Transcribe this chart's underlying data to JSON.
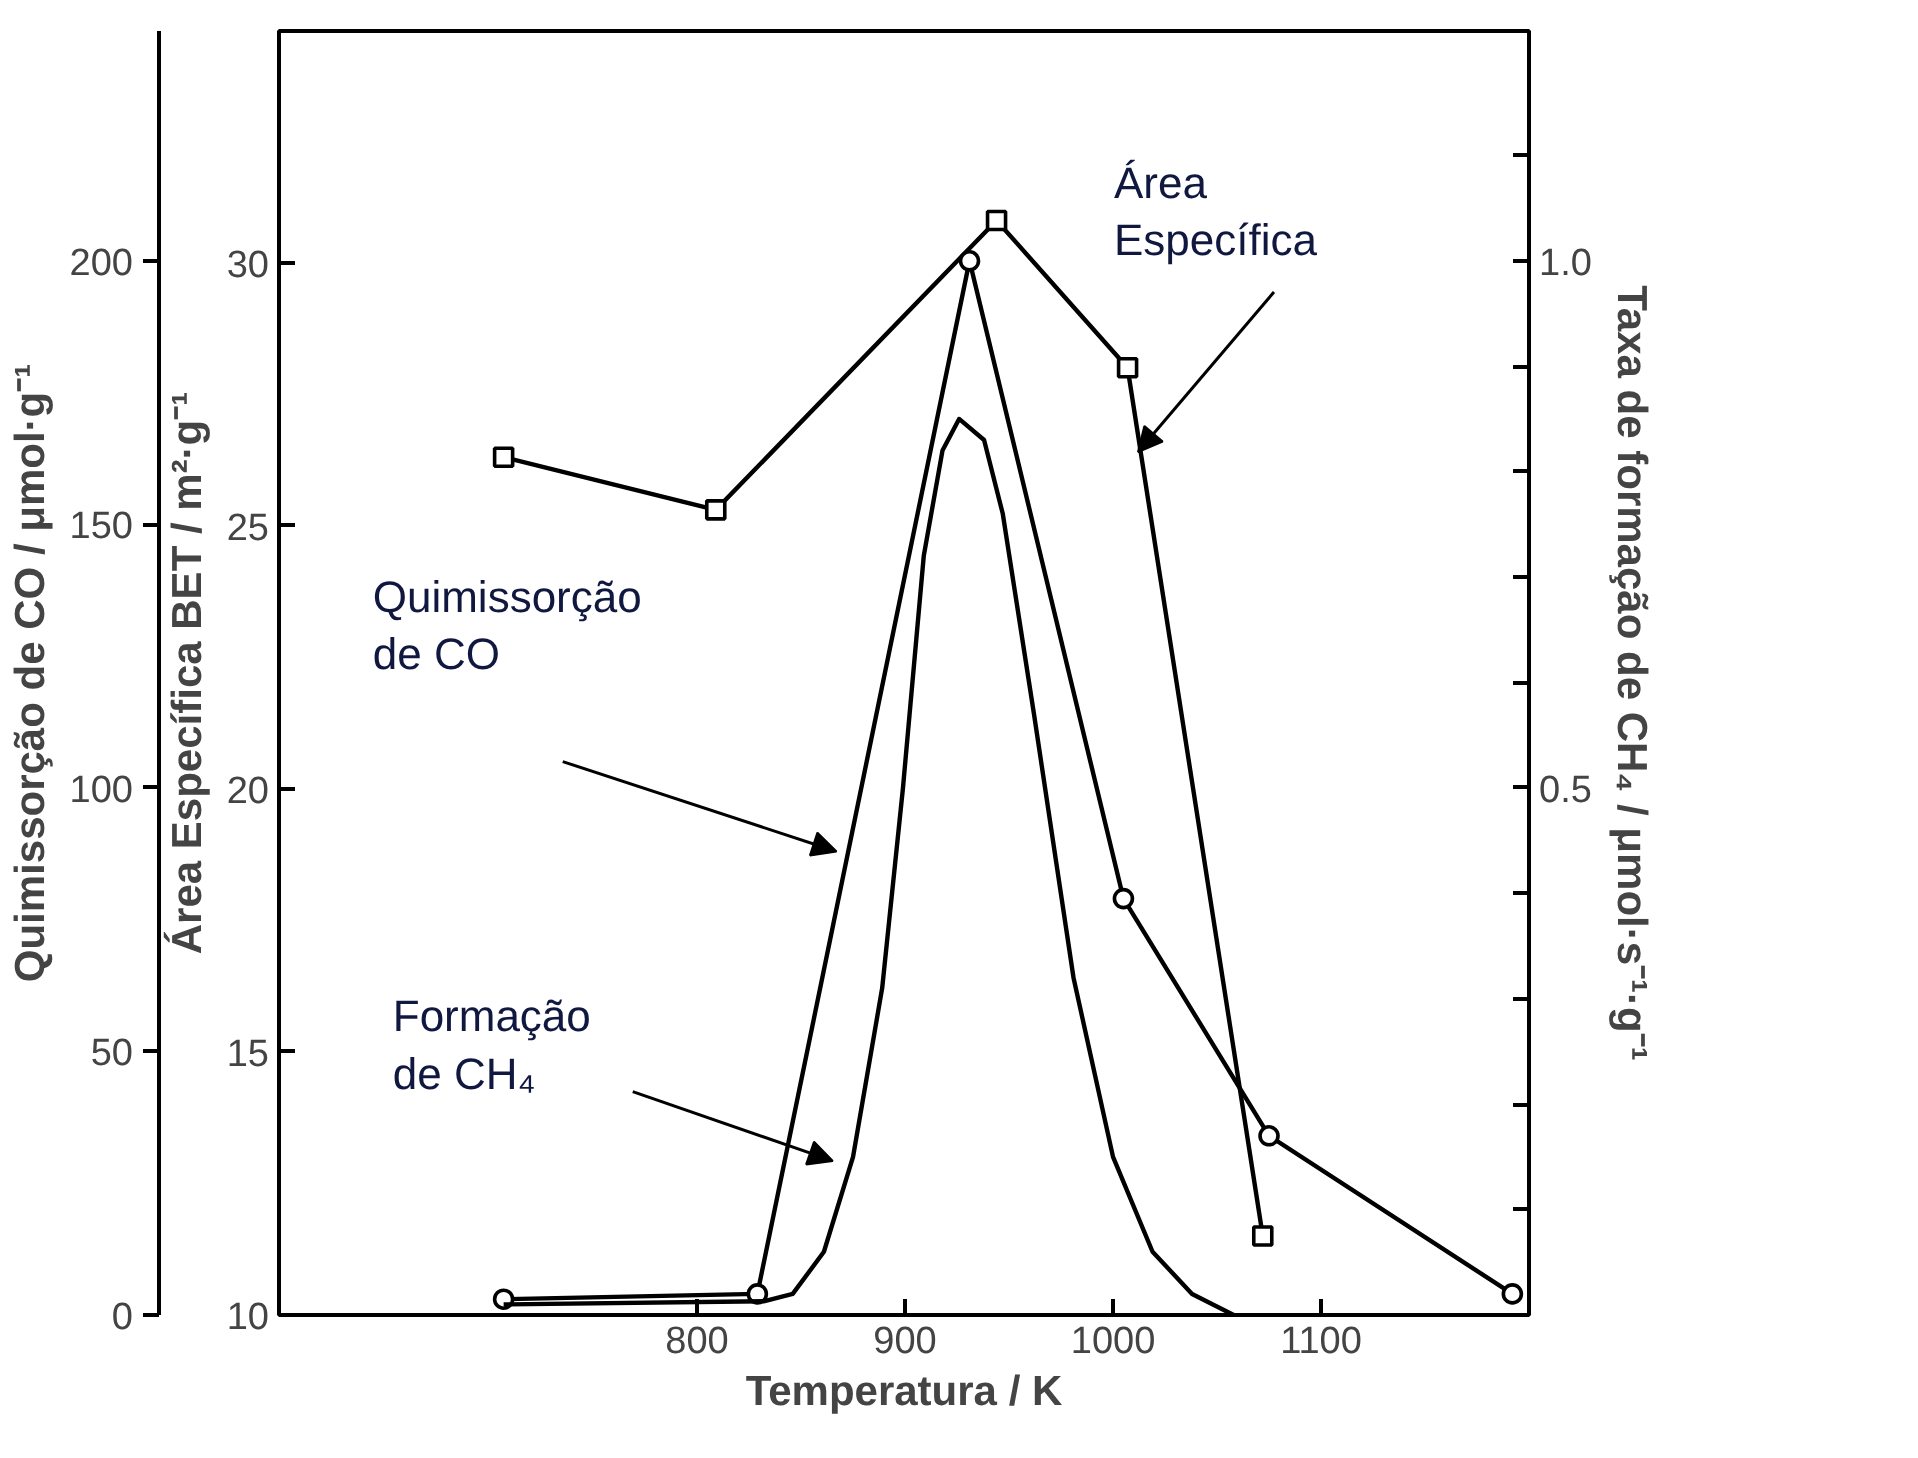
{
  "chart_data": {
    "type": "line",
    "xlabel": "Temperatura / K",
    "ylabel": "Área Específica BET / m²·g⁻¹",
    "y2label": "Quimissorção de CO / μmol·g⁻¹",
    "y3label": "Taxa de formação de CH₄ / μmol·s⁻¹·g⁻¹",
    "xlim": [
      599,
      1200
    ],
    "xticks": [
      800,
      900,
      1000,
      1100
    ],
    "ylim": [
      10,
      34.4
    ],
    "yticks": [
      10,
      15,
      20,
      25,
      30
    ],
    "y2lim": [
      0,
      243.6
    ],
    "y2ticks": [
      0,
      50,
      100,
      150,
      200
    ],
    "y3lim": [
      0,
      1.218
    ],
    "y3ticks": [
      {
        "value": 0.1,
        "label": null
      },
      {
        "value": 0.2,
        "label": null
      },
      {
        "value": 0.3,
        "label": null
      },
      {
        "value": 0.4,
        "label": null
      },
      0.5,
      {
        "value": 0.6,
        "label": null
      },
      {
        "value": 0.7,
        "label": null
      },
      {
        "value": 0.8,
        "label": null
      },
      {
        "value": 0.9,
        "label": null
      },
      {
        "value": 1.0,
        "label": "1.0"
      },
      {
        "value": 1.1,
        "label": null
      }
    ],
    "grid": false,
    "line_style": "solid",
    "series": [
      {
        "color": "#000000",
        "axis": "y",
        "marker": "square",
        "x": [
          707,
          809,
          944,
          1007,
          1072
        ],
        "values": [
          26.3,
          25.3,
          30.8,
          28.0,
          11.5
        ]
      },
      {
        "color": "#000000",
        "axis": "y2",
        "marker": "circle",
        "x": [
          707,
          829,
          931,
          1005,
          1075,
          1192
        ],
        "values": [
          3,
          4,
          200,
          79,
          34,
          4
        ]
      },
      {
        "color": "#000000",
        "axis": "y3",
        "marker": "none",
        "x": [
          707,
          832,
          846,
          861,
          875,
          889,
          899,
          909,
          918,
          926,
          938,
          947,
          962,
          981,
          1000,
          1019,
          1038,
          1058
        ],
        "values": [
          0.01,
          0.013,
          0.02,
          0.06,
          0.15,
          0.31,
          0.5,
          0.72,
          0.82,
          0.85,
          0.83,
          0.76,
          0.57,
          0.32,
          0.15,
          0.06,
          0.02,
          0.0
        ]
      }
    ],
    "annotations": [
      {
        "text": "Área\nEspecífica",
        "x": 1012,
        "y": 26.4
      },
      "Quimissorção\nde CO",
      "Formação\nde CH₄"
    ]
  }
}
